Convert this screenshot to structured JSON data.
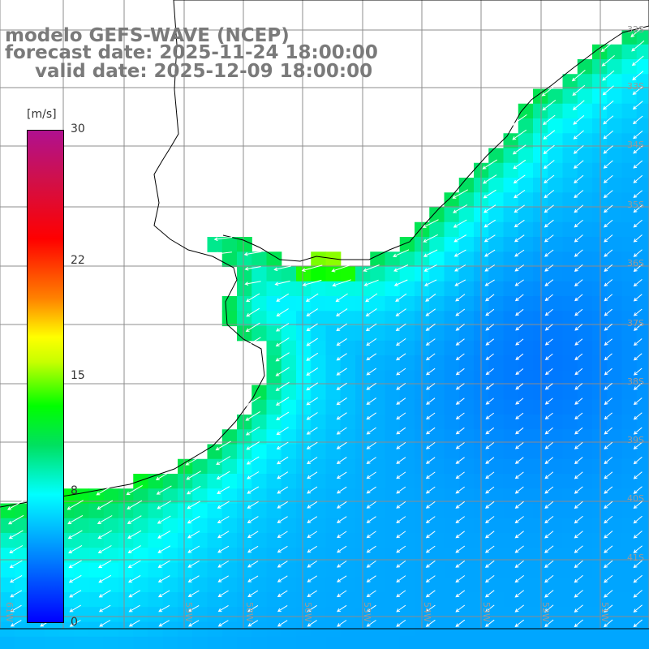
{
  "titles": {
    "line1": "modelo GEFS-WAVE (NCEP)",
    "line2": "forecast date: 2025-11-24 18:00:00",
    "line3": "valid date: 2025-12-09 18:00:00"
  },
  "colorbar": {
    "unit": "[m/s]",
    "ticks": [
      {
        "label": "30",
        "value": 30
      },
      {
        "label": "22",
        "value": 22
      },
      {
        "label": "15",
        "value": 15
      },
      {
        "label": "8",
        "value": 8
      },
      {
        "label": "0",
        "value": 0
      }
    ],
    "colors": [
      "#0000ff",
      "#0080ff",
      "#00ffff",
      "#00e060",
      "#00ff00",
      "#c8ff00",
      "#ffff00",
      "#ff8000",
      "#ff0000",
      "#d0104a",
      "#b01090"
    ]
  },
  "lat_labels": [
    "32S",
    "33S",
    "34S",
    "35S",
    "36S",
    "37S",
    "38S",
    "39S",
    "40S",
    "41S"
  ],
  "lon_labels": [
    "61W",
    "59W",
    "58W",
    "56W",
    "55W",
    "54W",
    "53W",
    "52W",
    "51W"
  ],
  "colors": {
    "land": "#ffffff",
    "coast": "#000000",
    "grid": "#8c8c8c",
    "arrow": "#ffffff",
    "title": "#7a7a7a"
  }
}
